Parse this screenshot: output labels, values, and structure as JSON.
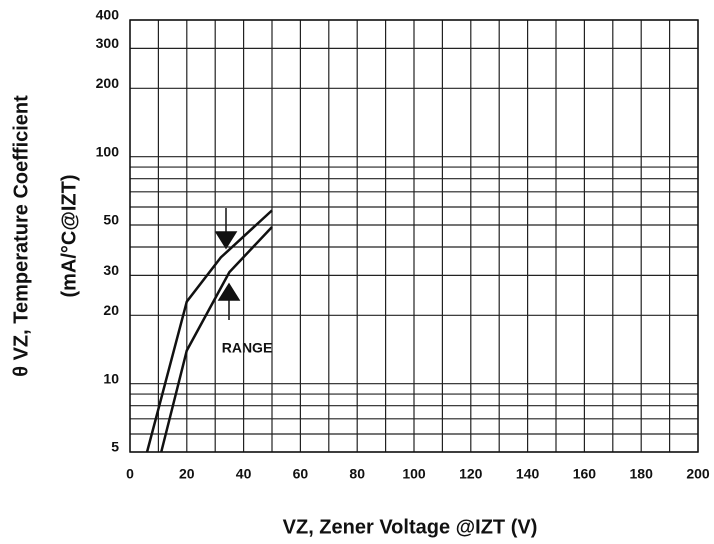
{
  "chart_data": {
    "type": "line",
    "ylabel": [
      "θ VZ, Temperature Coefficient",
      "(mA/°C@IZT)"
    ],
    "xlabel": "VZ, Zener Voltage @IZT (V)",
    "annotation": "RANGE",
    "series": [
      {
        "color": "#111111",
        "x": [
          6,
          20,
          32,
          50
        ],
        "values": [
          5,
          23,
          36,
          58
        ]
      },
      {
        "color": "#111111",
        "x": [
          11,
          20,
          35,
          50
        ],
        "values": [
          5,
          14,
          31,
          49
        ]
      }
    ],
    "xlim": [
      0,
      200
    ],
    "xticks": [
      0,
      20,
      40,
      60,
      80,
      100,
      120,
      140,
      160,
      180,
      200
    ],
    "x_minor_grid": [
      10,
      30,
      50,
      70,
      90,
      110,
      130,
      150,
      170,
      190
    ],
    "ylim": [
      5,
      400
    ],
    "yticks": [
      5,
      10,
      20,
      30,
      50,
      100,
      200,
      300,
      400
    ],
    "y_minor_grid": [
      6,
      7,
      8,
      9,
      40,
      60,
      70,
      80,
      90
    ],
    "log_y": true,
    "grid": true
  }
}
